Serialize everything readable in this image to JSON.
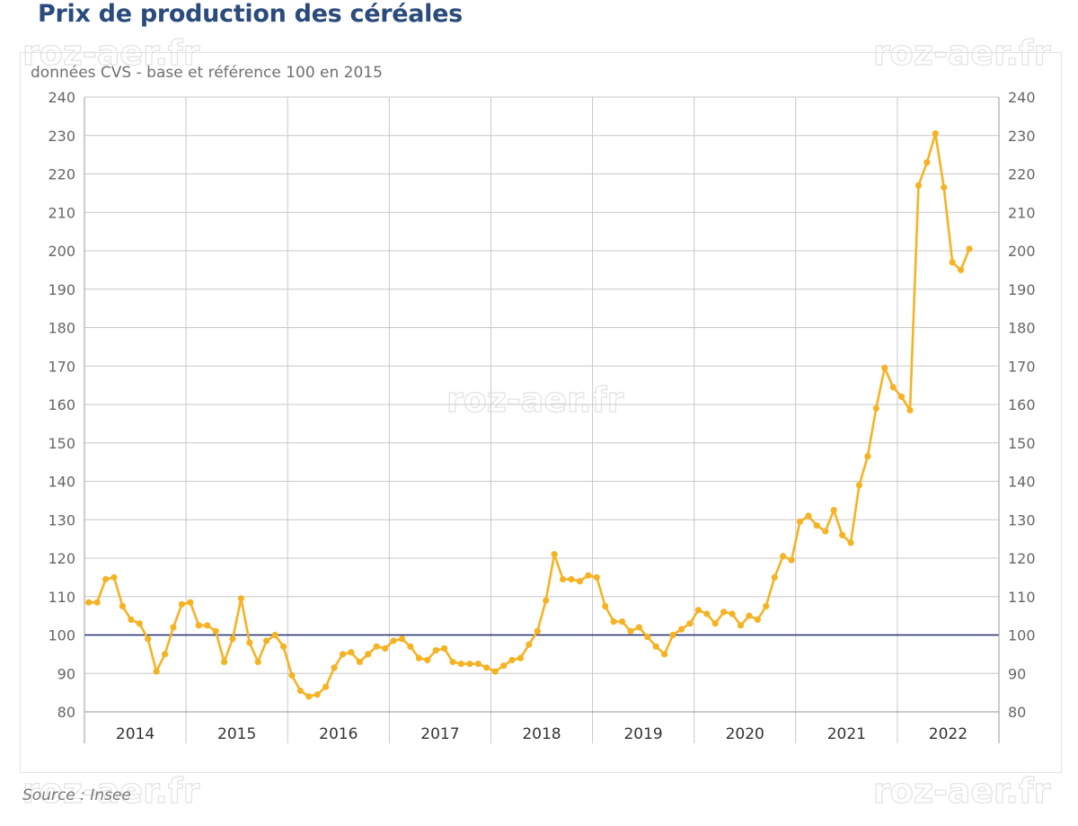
{
  "title": "Prix de production des céréales",
  "subtitle": "données CVS - base et référence 100 en 2015",
  "source": "Source : Insee",
  "watermark": "roz-aer.fr",
  "colors": {
    "series": "#f5b324",
    "reference_line": "#1f2a6b",
    "grid": "#c8c8c8",
    "title": "#2a4b7c"
  },
  "chart_data": {
    "type": "line",
    "title": "Prix de production des céréales",
    "ylim": [
      80,
      240
    ],
    "yticks": [
      80,
      90,
      100,
      110,
      120,
      130,
      140,
      150,
      160,
      170,
      180,
      190,
      200,
      210,
      220,
      230,
      240
    ],
    "y_axis_both_sides": true,
    "years": [
      "2014",
      "2015",
      "2016",
      "2017",
      "2018",
      "2019",
      "2020",
      "2021",
      "2022"
    ],
    "grid": true,
    "reference_value": 100,
    "x_start": "2014-01",
    "series": [
      {
        "values": [
          108.5,
          108.5,
          114.5,
          115,
          107.5,
          104,
          103,
          99,
          90.5,
          95,
          102,
          108,
          108.5,
          102.5,
          102.5,
          101,
          93,
          99,
          109.5,
          98,
          93,
          98.5,
          100,
          97,
          89.5,
          85.5,
          84,
          84.5,
          86.5,
          91.5,
          95,
          95.5,
          93,
          95,
          97,
          96.5,
          98.5,
          99,
          97,
          94,
          93.5,
          96,
          96.5,
          93,
          92.5,
          92.5,
          92.5,
          91.5,
          90.5,
          92,
          93.5,
          94,
          97.5,
          101,
          109,
          121,
          114.5,
          114.5,
          114,
          115.5,
          115,
          107.5,
          103.5,
          103.5,
          101,
          102,
          99.5,
          97,
          95,
          100,
          101.5,
          103,
          106.5,
          105.5,
          103,
          106,
          105.5,
          102.5,
          105,
          104,
          107.5,
          115,
          120.5,
          119.5,
          129.5,
          131,
          128.5,
          127,
          132.5,
          126,
          124,
          139,
          146.5,
          159,
          169.5,
          164.5,
          162,
          158.5,
          217,
          223,
          230.5,
          216.5,
          197,
          195,
          200.5
        ]
      }
    ]
  }
}
